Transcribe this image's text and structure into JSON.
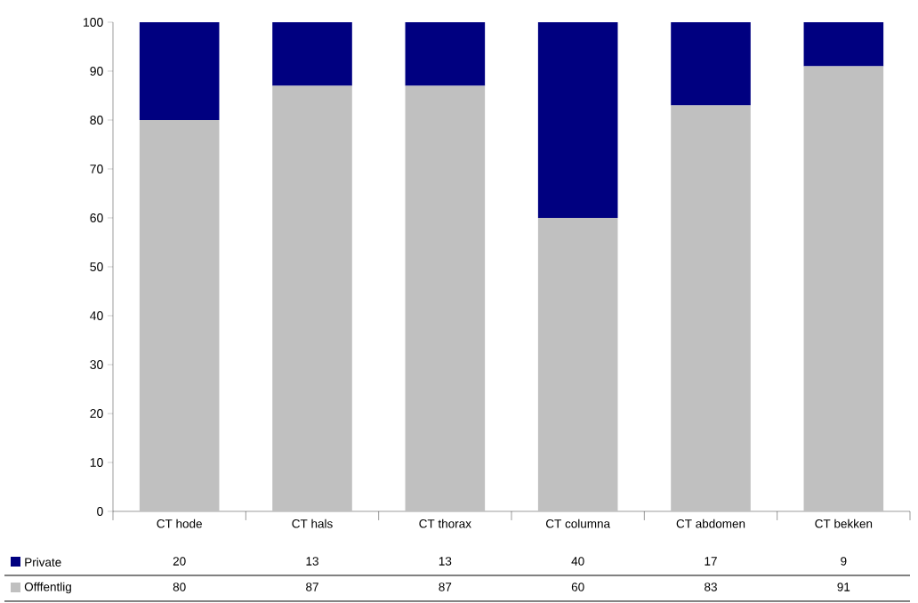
{
  "chart_data": {
    "type": "bar",
    "stacked": true,
    "categories": [
      "CT hode",
      "CT hals",
      "CT thorax",
      "CT columna",
      "CT abdomen",
      "CT bekken"
    ],
    "series": [
      {
        "name": "Offfentlig",
        "color": "#c0c0c0",
        "values": [
          80,
          87,
          87,
          60,
          83,
          91
        ],
        "value_labels": [
          "80",
          "87",
          "87",
          "60",
          "83",
          "91"
        ]
      },
      {
        "name": "Private",
        "color": "#000080",
        "values": [
          20,
          13,
          13,
          40,
          17,
          9
        ],
        "value_labels": [
          "20",
          "13",
          "13",
          "40",
          "17",
          "9"
        ]
      }
    ],
    "ylim": [
      0,
      100
    ],
    "yticks": [
      0,
      10,
      20,
      30,
      40,
      50,
      60,
      70,
      80,
      90,
      100
    ],
    "legend": "bottom",
    "grid": false
  }
}
